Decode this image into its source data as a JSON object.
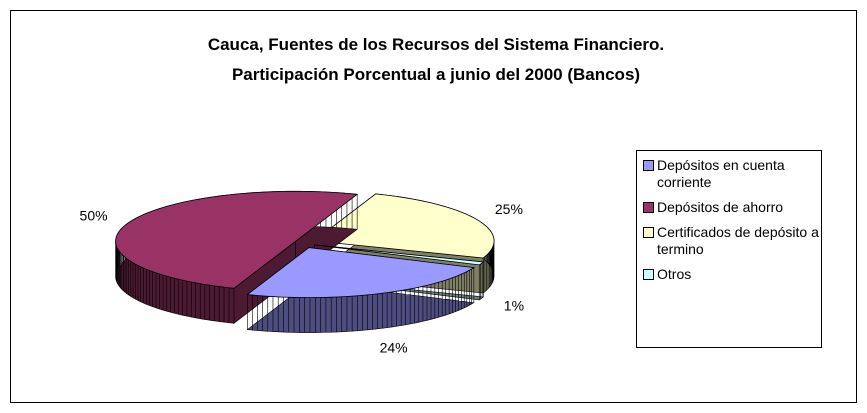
{
  "chart_data": {
    "type": "pie3d",
    "title": "Cauca, Fuentes de los Recursos del Sistema Financiero.",
    "subtitle": "Participación Porcentual a junio del 2000 (Bancos)",
    "categories": [
      "Depósitos en cuenta corriente",
      "Depósitos de ahorro",
      "Certificados de depósito a termino",
      "Otros"
    ],
    "values": [
      24,
      50,
      25,
      1
    ],
    "value_labels": [
      "24%",
      "50%",
      "25%",
      "1%"
    ],
    "colors": [
      "#9999ff",
      "#993366",
      "#ffffcc",
      "#ccffff"
    ],
    "legend": "right"
  }
}
